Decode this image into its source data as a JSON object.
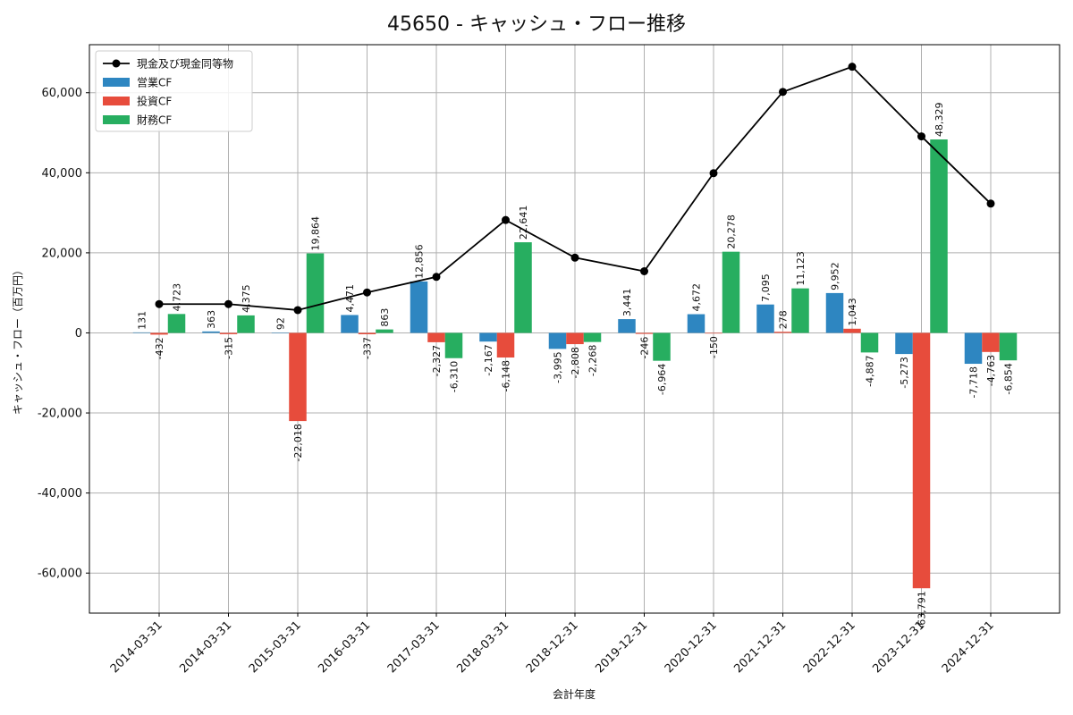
{
  "chart_data": {
    "type": "bar",
    "title": "45650 - キャッシュ・フロー推移",
    "xlabel": "会計年度",
    "ylabel": "キャッシュ・フロー（百万円）",
    "ylim": [
      -70000,
      72000
    ],
    "yticks": [
      -60000,
      -40000,
      -20000,
      0,
      20000,
      40000,
      60000
    ],
    "ytick_labels": [
      "-60,000",
      "-40,000",
      "-20,000",
      "0",
      "20,000",
      "40,000",
      "60,000"
    ],
    "grid": true,
    "legend_position": "top-left",
    "categories": [
      "2014-03-31",
      "2014-03-31",
      "2015-03-31",
      "2016-03-31",
      "2017-03-31",
      "2018-03-31",
      "2018-12-31",
      "2019-12-31",
      "2020-12-31",
      "2021-12-31",
      "2022-12-31",
      "2023-12-31",
      "2024-12-31"
    ],
    "series": [
      {
        "name": "営業CF",
        "kind": "bar",
        "color": "#2e86c1",
        "values": [
          131,
          363,
          92,
          4471,
          12856,
          -2167,
          -3995,
          3441,
          4672,
          7095,
          9952,
          -5273,
          -7718
        ],
        "labels": [
          "131",
          "363",
          "92",
          "4,471",
          "12,856",
          "-2,167",
          "-3,995",
          "3,441",
          "4,672",
          "7,095",
          "9,952",
          "-5,273",
          "-7,718"
        ]
      },
      {
        "name": "投資CF",
        "kind": "bar",
        "color": "#e74c3c",
        "values": [
          -432,
          -315,
          -22018,
          -337,
          -2327,
          -6148,
          -2808,
          -246,
          -150,
          278,
          1043,
          -63791,
          -4763
        ],
        "labels": [
          "-432",
          "-315",
          "-22,018",
          "-337",
          "-2,327",
          "-6,148",
          "-2,808",
          "-246",
          "-150",
          "278",
          "1,043",
          "-63,791",
          "-4,763"
        ]
      },
      {
        "name": "財務CF",
        "kind": "bar",
        "color": "#27ae60",
        "values": [
          4723,
          4375,
          19864,
          863,
          -6310,
          22641,
          -2268,
          -6964,
          20278,
          11123,
          -4887,
          48329,
          -6854
        ],
        "labels": [
          "4,723",
          "4,375",
          "19,864",
          "863",
          "-6,310",
          "22,641",
          "-2,268",
          "-6,964",
          "20,278",
          "11,123",
          "-4,887",
          "48,329",
          "-6,854"
        ]
      },
      {
        "name": "現金及び現金同等物",
        "kind": "line",
        "color": "#000000",
        "values": [
          7200,
          7200,
          5700,
          10100,
          14000,
          28200,
          18800,
          15400,
          39900,
          60200,
          66500,
          49100,
          32300
        ]
      }
    ]
  }
}
